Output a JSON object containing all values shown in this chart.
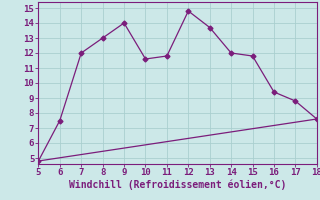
{
  "xlabel": "Windchill (Refroidissement éolien,°C)",
  "xlim": [
    5,
    18
  ],
  "ylim": [
    4.6,
    15.4
  ],
  "xticks": [
    5,
    6,
    7,
    8,
    9,
    10,
    11,
    12,
    13,
    14,
    15,
    16,
    17,
    18
  ],
  "yticks": [
    5,
    6,
    7,
    8,
    9,
    10,
    11,
    12,
    13,
    14,
    15
  ],
  "line1_x": [
    5,
    6,
    7,
    8,
    9,
    10,
    11,
    12,
    13,
    14,
    15,
    16,
    17,
    18
  ],
  "line1_y": [
    4.8,
    7.5,
    12.0,
    13.0,
    14.0,
    11.6,
    11.8,
    14.8,
    13.7,
    12.0,
    11.8,
    9.4,
    8.8,
    7.6
  ],
  "line2_x": [
    5,
    18
  ],
  "line2_y": [
    4.8,
    7.6
  ],
  "line_color": "#7B1D7B",
  "marker": "D",
  "marker_size": 2.5,
  "bg_color": "#cce8e8",
  "grid_color": "#aacfcf",
  "font_color": "#7B1D7B",
  "xlabel_fontsize": 7.0,
  "tick_fontsize": 6.5,
  "font_family": "monospace"
}
